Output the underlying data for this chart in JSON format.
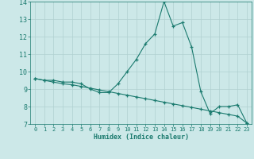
{
  "line1_x": [
    0,
    1,
    2,
    3,
    4,
    5,
    6,
    7,
    8,
    9,
    10,
    11,
    12,
    13,
    14,
    15,
    16,
    17,
    18,
    19,
    20,
    21,
    22,
    23
  ],
  "line1_y": [
    9.6,
    9.5,
    9.5,
    9.4,
    9.4,
    9.3,
    9.0,
    8.8,
    8.8,
    9.3,
    10.0,
    10.7,
    11.6,
    12.15,
    14.0,
    12.6,
    12.8,
    11.4,
    8.85,
    7.6,
    8.0,
    8.0,
    8.1,
    7.05
  ],
  "line2_x": [
    0,
    1,
    2,
    3,
    4,
    5,
    6,
    7,
    8,
    9,
    10,
    11,
    12,
    13,
    14,
    15,
    16,
    17,
    18,
    19,
    20,
    21,
    22,
    23
  ],
  "line2_y": [
    9.6,
    9.5,
    9.4,
    9.3,
    9.25,
    9.15,
    9.05,
    8.95,
    8.85,
    8.75,
    8.65,
    8.55,
    8.45,
    8.35,
    8.25,
    8.15,
    8.05,
    7.95,
    7.85,
    7.75,
    7.65,
    7.55,
    7.45,
    7.05
  ],
  "line_color": "#1a7a6e",
  "bg_color": "#cce8e8",
  "grid_color": "#b0d0d0",
  "xlabel": "Humidex (Indice chaleur)",
  "ylim": [
    7,
    14
  ],
  "xlim": [
    -0.5,
    23.5
  ],
  "yticks": [
    7,
    8,
    9,
    10,
    11,
    12,
    13,
    14
  ],
  "xticks": [
    0,
    1,
    2,
    3,
    4,
    5,
    6,
    7,
    8,
    9,
    10,
    11,
    12,
    13,
    14,
    15,
    16,
    17,
    18,
    19,
    20,
    21,
    22,
    23
  ],
  "marker": "+"
}
